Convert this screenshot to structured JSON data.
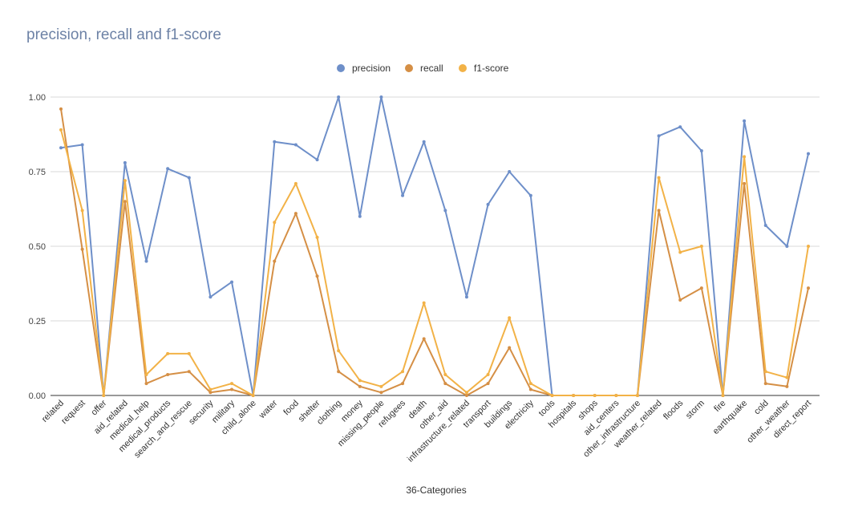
{
  "chart_data": {
    "type": "line",
    "title": "precision, recall and f1-score",
    "xlabel": "36-Categories",
    "ylabel": "",
    "ylim": [
      0,
      1
    ],
    "yticks": [
      "0.00",
      "0.25",
      "0.50",
      "0.75",
      "1.00"
    ],
    "ytick_values": [
      0,
      0.25,
      0.5,
      0.75,
      1.0
    ],
    "grid": true,
    "legend_position": "top-center",
    "categories": [
      "related",
      "request",
      "offer",
      "aid_related",
      "medical_help",
      "medical_products",
      "search_and_rescue",
      "security",
      "military",
      "child_alone",
      "water",
      "food",
      "shelter",
      "clothing",
      "money",
      "missing_people",
      "refugees",
      "death",
      "other_aid",
      "infrastructure_related",
      "transport",
      "buildings",
      "electricity",
      "tools",
      "hospitals",
      "shops",
      "aid_centers",
      "other_infrastructure",
      "weather_related",
      "floods",
      "storm",
      "fire",
      "earthquake",
      "cold",
      "other_weather",
      "direct_report"
    ],
    "series": [
      {
        "name": "precision",
        "color": "#6e8fc9",
        "values": [
          0.83,
          0.84,
          0.0,
          0.78,
          0.45,
          0.76,
          0.73,
          0.33,
          0.38,
          0.0,
          0.85,
          0.84,
          0.79,
          1.0,
          0.6,
          1.0,
          0.67,
          0.85,
          0.62,
          0.33,
          0.64,
          0.75,
          0.67,
          0.0,
          0.0,
          0.0,
          0.0,
          0.0,
          0.87,
          0.9,
          0.82,
          0.0,
          0.92,
          0.57,
          0.5,
          0.81
        ]
      },
      {
        "name": "recall",
        "color": "#d58f45",
        "values": [
          0.96,
          0.49,
          0.0,
          0.65,
          0.04,
          0.07,
          0.08,
          0.01,
          0.02,
          0.0,
          0.45,
          0.61,
          0.4,
          0.08,
          0.03,
          0.01,
          0.04,
          0.19,
          0.04,
          0.0,
          0.04,
          0.16,
          0.02,
          0.0,
          0.0,
          0.0,
          0.0,
          0.0,
          0.62,
          0.32,
          0.36,
          0.0,
          0.71,
          0.04,
          0.03,
          0.36
        ]
      },
      {
        "name": "f1-score",
        "color": "#f2b247",
        "values": [
          0.89,
          0.62,
          0.0,
          0.72,
          0.07,
          0.14,
          0.14,
          0.02,
          0.04,
          0.0,
          0.58,
          0.71,
          0.53,
          0.15,
          0.05,
          0.03,
          0.08,
          0.31,
          0.07,
          0.01,
          0.07,
          0.26,
          0.04,
          0.0,
          0.0,
          0.0,
          0.0,
          0.0,
          0.73,
          0.48,
          0.5,
          0.0,
          0.8,
          0.08,
          0.06,
          0.5
        ]
      }
    ]
  }
}
